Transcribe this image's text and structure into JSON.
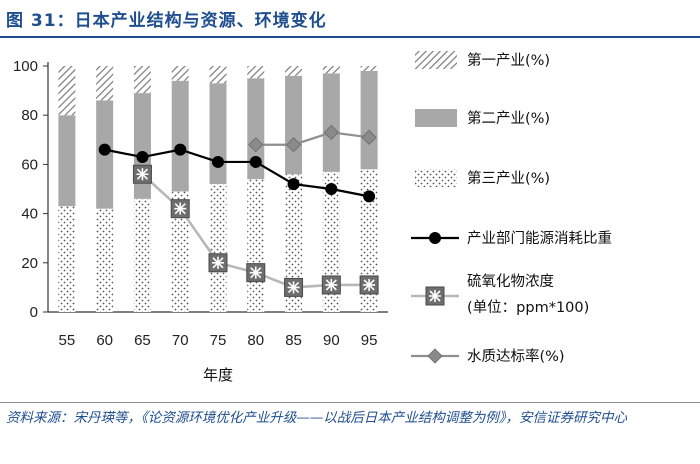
{
  "title": "图 31：日本产业结构与资源、环境变化",
  "source": "资料来源：宋丹瑛等，《论资源环境优化产业升级——以战后日本产业结构调整为例》，安信证券研究中心",
  "colors": {
    "title": "#1f4e8f",
    "primary_bar": "#7a7a7a",
    "secondary_bar": "#a8a8a8",
    "tertiary_dots": "#555555",
    "energy_line": "#000000",
    "sulfur_line": "#b8b8b8",
    "sulfur_marker": "#6e6e6e",
    "water_line": "#8f8f8f",
    "water_marker": "#8a8a8a"
  },
  "chart_data": {
    "type": "bar",
    "stacked": true,
    "categories": [
      "55",
      "60",
      "65",
      "70",
      "75",
      "80",
      "85",
      "90",
      "95"
    ],
    "xlabel": "年度",
    "ylabel": "",
    "ylim": [
      0,
      100
    ],
    "yticks": [
      "0",
      "20",
      "40",
      "60",
      "80",
      "100"
    ],
    "grid": false,
    "legend_position": "right",
    "bar_series": [
      {
        "name": "第三产业(%)",
        "pattern": "dots",
        "values": [
          43,
          42,
          46,
          49,
          52,
          54,
          56,
          57,
          58
        ]
      },
      {
        "name": "第二产业(%)",
        "pattern": "solid",
        "values": [
          37,
          44,
          43,
          45,
          41,
          41,
          40,
          40,
          40
        ]
      },
      {
        "name": "第一产业(%)",
        "pattern": "hatch",
        "values": [
          20,
          14,
          11,
          6,
          7,
          5,
          4,
          3,
          2
        ]
      }
    ],
    "line_series": [
      {
        "name": "产业部门能源消耗比重",
        "marker": "circle",
        "values": [
          null,
          66,
          63,
          66,
          61,
          61,
          52,
          50,
          47
        ]
      },
      {
        "name": "硫氧化物浓度",
        "name_line2": "(单位：ppm*100)",
        "marker": "x-square",
        "values": [
          null,
          null,
          56,
          42,
          20,
          16,
          10,
          11,
          11
        ]
      },
      {
        "name": "水质达标率(%)",
        "marker": "diamond",
        "values": [
          null,
          null,
          null,
          null,
          null,
          68,
          68,
          73,
          71
        ]
      }
    ]
  }
}
